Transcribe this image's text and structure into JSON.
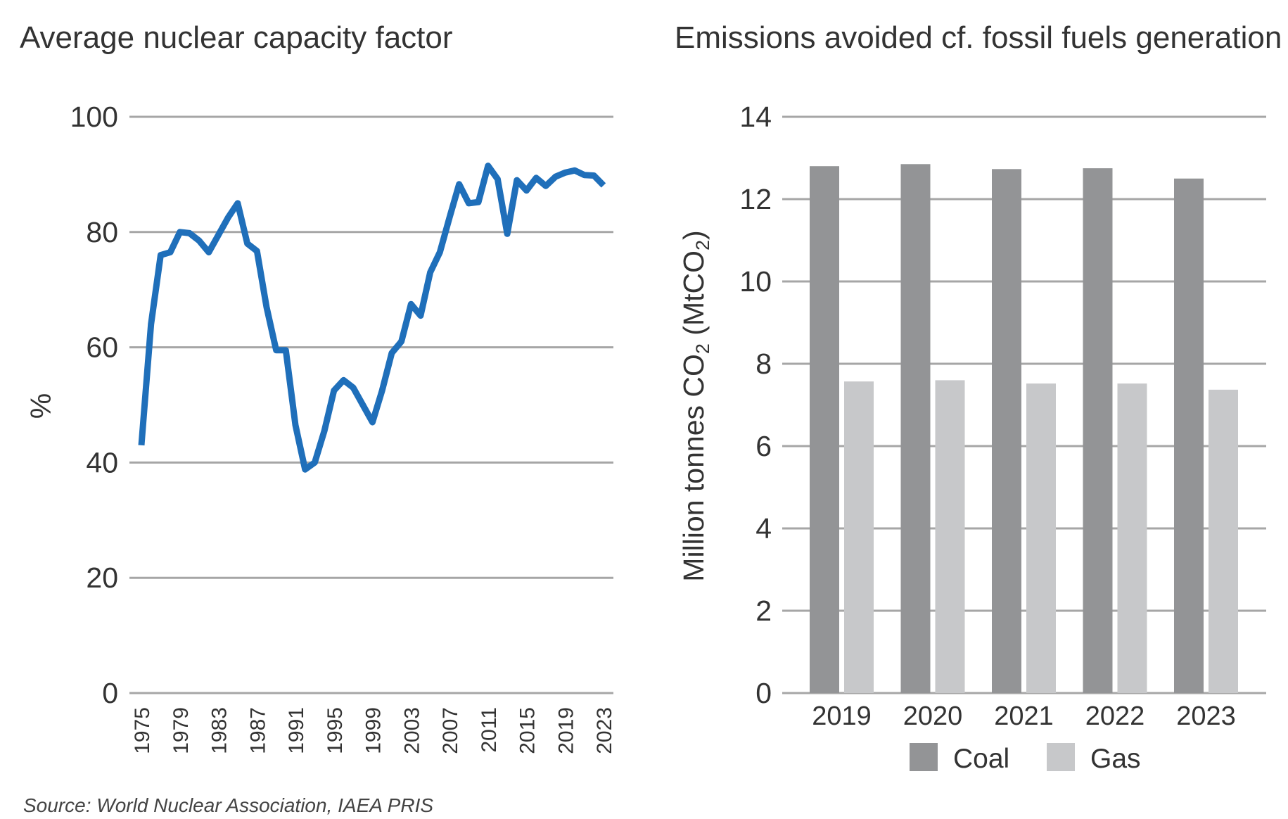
{
  "source": "Source: World Nuclear Association, IAEA PRIS",
  "chart_data": [
    {
      "type": "line",
      "title": "Average nuclear capacity factor",
      "ylabel": "%",
      "xlabel": "",
      "ylim": [
        0,
        100
      ],
      "yticks": [
        0,
        20,
        40,
        60,
        80,
        100
      ],
      "xlim": [
        1975,
        2023
      ],
      "xticks": [
        1975,
        1979,
        1983,
        1987,
        1991,
        1995,
        1999,
        2003,
        2007,
        2011,
        2015,
        2019,
        2023
      ],
      "grid": "horizontal",
      "color": "#1f6fba",
      "x": [
        1975,
        1976,
        1977,
        1978,
        1979,
        1980,
        1981,
        1982,
        1983,
        1984,
        1985,
        1986,
        1987,
        1988,
        1989,
        1990,
        1991,
        1992,
        1993,
        1994,
        1995,
        1996,
        1997,
        1998,
        1999,
        2000,
        2001,
        2002,
        2003,
        2004,
        2005,
        2006,
        2007,
        2008,
        2009,
        2010,
        2011,
        2012,
        2013,
        2014,
        2015,
        2016,
        2017,
        2018,
        2019,
        2020,
        2021,
        2022,
        2023
      ],
      "y": [
        43,
        64,
        76,
        76.5,
        80,
        79.8,
        78.5,
        76.5,
        79.5,
        82.5,
        85,
        78,
        76.7,
        67,
        59.5,
        59.5,
        46.5,
        38.8,
        40,
        45.5,
        52.5,
        54.3,
        53,
        50,
        47,
        52.5,
        59,
        61,
        67.5,
        65.5,
        73,
        76.5,
        82.5,
        88.3,
        85,
        85.2,
        91.5,
        89.2,
        79.7,
        89,
        87.2,
        89.4,
        88,
        89.6,
        90.3,
        90.7,
        89.9,
        89.8,
        88.1
      ]
    },
    {
      "type": "bar",
      "title": "Emissions avoided cf. fossil fuels generation",
      "ylabel": "Million tonnes CO₂ (MtCO₂)",
      "ylabel_main": "Million tonnes CO",
      "ylabel_sub1": "2",
      "ylabel_mid": " (MtCO",
      "ylabel_sub2": "2",
      "ylabel_end": ")",
      "xlabel": "",
      "ylim": [
        0,
        14
      ],
      "yticks": [
        0,
        2,
        4,
        6,
        8,
        10,
        12,
        14
      ],
      "grid": "horizontal",
      "legend": "bottom",
      "categories": [
        "2019",
        "2020",
        "2021",
        "2022",
        "2023"
      ],
      "series": [
        {
          "name": "Coal",
          "color": "#939496",
          "values": [
            12.8,
            12.85,
            12.73,
            12.75,
            12.5
          ]
        },
        {
          "name": "Gas",
          "color": "#c7c8ca",
          "values": [
            7.57,
            7.6,
            7.52,
            7.52,
            7.37
          ]
        }
      ]
    }
  ]
}
